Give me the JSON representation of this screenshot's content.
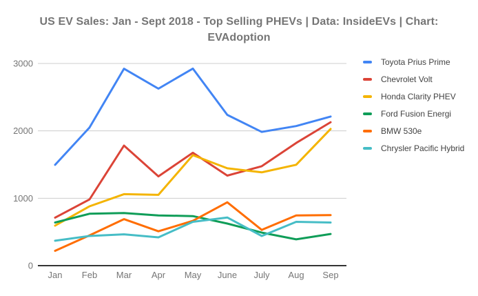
{
  "chart_data": {
    "type": "line",
    "title": "US EV Sales: Jan - Sept 2018 - Top Selling PHEVs | Data: InsideEVs | Chart: EVAdoption",
    "categories": [
      "Jan",
      "Feb",
      "Mar",
      "Apr",
      "May",
      "June",
      "July",
      "Aug",
      "Sep"
    ],
    "series": [
      {
        "name": "Toyota Prius Prime",
        "color": "#4285F4",
        "values": [
          1496,
          2050,
          2922,
          2626,
          2924,
          2237,
          1984,
          2071,
          2213
        ]
      },
      {
        "name": "Chevrolet Volt",
        "color": "#DB4437",
        "values": [
          713,
          983,
          1782,
          1325,
          1675,
          1336,
          1475,
          1820,
          2129
        ]
      },
      {
        "name": "Honda Clarity PHEV",
        "color": "#F4B400",
        "values": [
          594,
          881,
          1061,
          1050,
          1639,
          1445,
          1384,
          1497,
          2028
        ]
      },
      {
        "name": "Ford Fusion Energi",
        "color": "#0F9D58",
        "values": [
          640,
          770,
          780,
          745,
          735,
          625,
          490,
          390,
          470
        ]
      },
      {
        "name": "BMW 530e",
        "color": "#FF6D01",
        "values": [
          220,
          450,
          690,
          510,
          665,
          940,
          530,
          745,
          750
        ]
      },
      {
        "name": "Chrysler Pacific Hybrid",
        "color": "#46BDC6",
        "values": [
          370,
          440,
          465,
          420,
          650,
          715,
          440,
          650,
          640
        ]
      }
    ],
    "y_ticks": [
      0,
      1000,
      2000,
      3000
    ],
    "ylim": [
      0,
      3000
    ],
    "grid": true,
    "legend_position": "right",
    "colors": {
      "gridline": "#cccccc",
      "axis_line": "#333333",
      "tick_label": "#757575",
      "legend_text": "#424242",
      "title_text": "#757575",
      "background": "#ffffff"
    }
  }
}
